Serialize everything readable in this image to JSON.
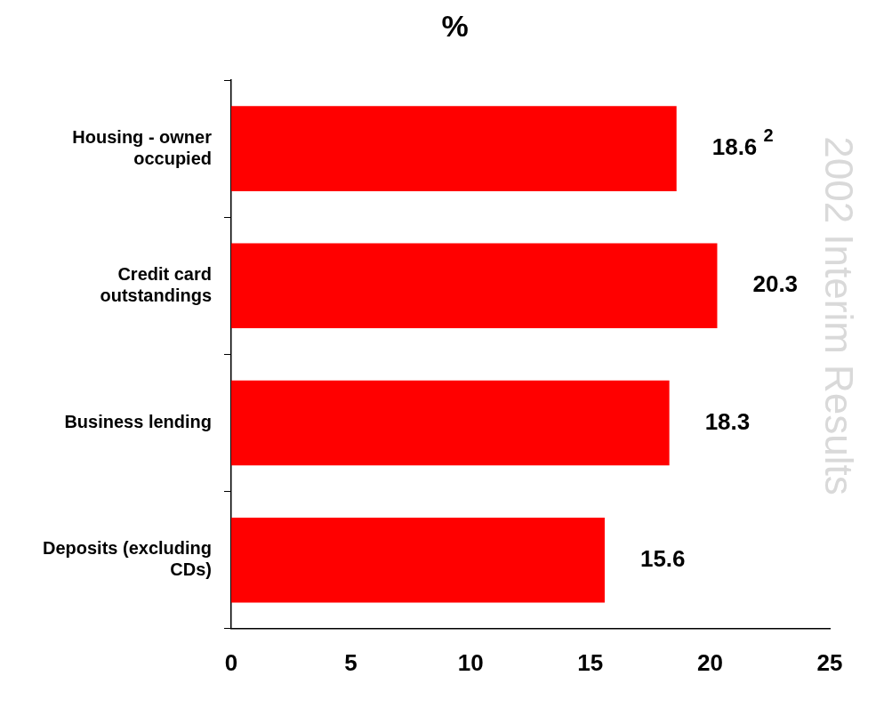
{
  "chart_data": {
    "type": "bar",
    "orientation": "horizontal",
    "title": "%",
    "categories": [
      "Housing - owner occupied",
      "Credit card outstandings",
      "Business lending",
      "Deposits (excluding CDs)"
    ],
    "values": [
      18.6,
      20.3,
      18.3,
      15.6
    ],
    "value_labels": [
      "18.6 $^{2}$",
      "20.3",
      "18.3",
      "15.6"
    ],
    "color": "#ff0000",
    "xlim": [
      0,
      25
    ],
    "xticks": [
      0,
      5,
      10,
      15,
      20,
      25
    ],
    "grid": false,
    "legend": false,
    "annotations": [
      "2002 Interim Results"
    ]
  }
}
